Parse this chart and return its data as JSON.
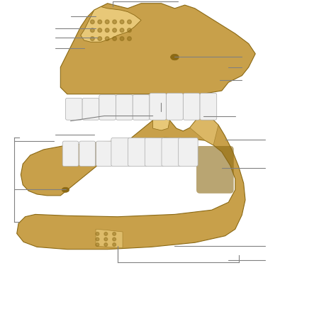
{
  "background_color": "#ffffff",
  "title": "",
  "figsize": [
    4.74,
    4.74
  ],
  "dpi": 100,
  "line_color": "#808080",
  "line_width": 0.8,
  "bone_color_main": "#c8a04a",
  "bone_color_dark": "#8b6914",
  "bone_color_light": "#e8c878",
  "tooth_color": "#f0f0f0"
}
